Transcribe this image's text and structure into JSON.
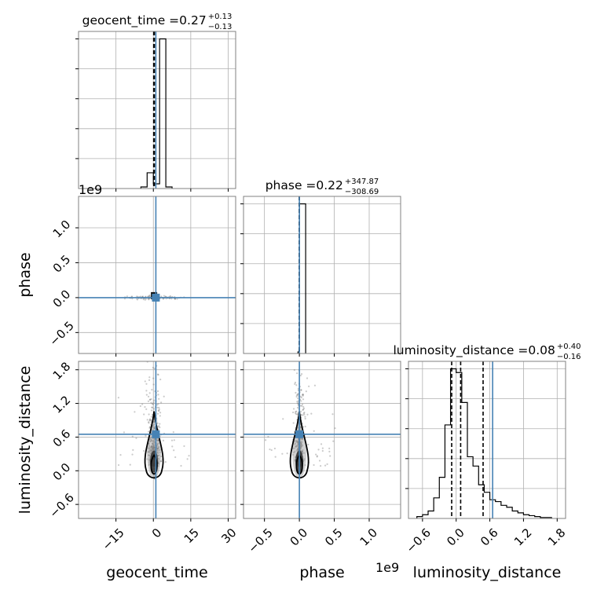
{
  "chart_data": {
    "type": "corner",
    "truth_color": "#4682b4",
    "parameters": [
      {
        "name": "geocent_time",
        "axis_label": "geocent_time",
        "title_prefix": "geocent_time = ",
        "median": "0.27",
        "err_plus": "+0.13",
        "err_minus": "−0.13",
        "truth": 1.0,
        "quantiles": [
          0.14,
          0.27,
          0.4
        ],
        "range": [
          -30,
          33
        ],
        "ticks": [
          -15,
          0,
          15,
          30
        ],
        "tick_labels": [
          "−15",
          "0",
          "15",
          "30"
        ],
        "hist": {
          "edges": [
            -5,
            -2.5,
            0,
            2.5,
            5,
            7.5
          ],
          "counts": [
            1,
            10,
            3,
            95,
            1
          ]
        }
      },
      {
        "name": "phase",
        "axis_label": "phase",
        "title_prefix": "phase = ",
        "median": "0.22",
        "err_plus": "+347.87",
        "err_minus": "−308.69",
        "truth": 0.0,
        "offset_text": "1e9",
        "quantiles": [
          -0.0002,
          0.0,
          0.0004
        ],
        "range": [
          -0.8,
          1.45
        ],
        "ticks": [
          -0.5,
          0.0,
          0.5,
          1.0
        ],
        "tick_labels": [
          "−0.5",
          "0.0",
          "0.5",
          "1.0"
        ],
        "hist": {
          "edges": [
            -0.02,
            -0.005,
            0.0,
            0.09
          ],
          "counts": [
            1,
            2,
            95
          ]
        }
      },
      {
        "name": "luminosity_distance",
        "axis_label": "luminosity_distance",
        "title_prefix": "luminosity_distance = ",
        "median": "0.08",
        "err_plus": "+0.40",
        "err_minus": "−0.16",
        "truth": 0.65,
        "quantiles": [
          -0.08,
          0.08,
          0.48
        ],
        "range": [
          -0.85,
          1.95
        ],
        "ticks": [
          -0.6,
          0.0,
          0.6,
          1.2,
          1.8
        ],
        "tick_labels": [
          "−0.6",
          "0.0",
          "0.6",
          "1.2",
          "1.8"
        ],
        "y_tick_labels": [
          "−0.6",
          "0.0",
          "0.6",
          "1.2",
          "1.8"
        ],
        "hist": {
          "edges": [
            -0.7,
            -0.6,
            -0.5,
            -0.4,
            -0.3,
            -0.2,
            -0.1,
            0.0,
            0.1,
            0.2,
            0.3,
            0.4,
            0.5,
            0.6,
            0.7,
            0.8,
            0.9,
            1.0,
            1.1,
            1.2,
            1.3,
            1.4,
            1.5,
            1.6,
            1.7
          ],
          "counts": [
            1,
            2,
            4,
            11,
            22,
            50,
            80,
            78,
            62,
            33,
            28,
            18,
            14,
            10,
            9,
            7,
            6,
            4,
            3,
            2,
            1.5,
            1,
            0.5,
            0.5
          ]
        }
      }
    ]
  }
}
